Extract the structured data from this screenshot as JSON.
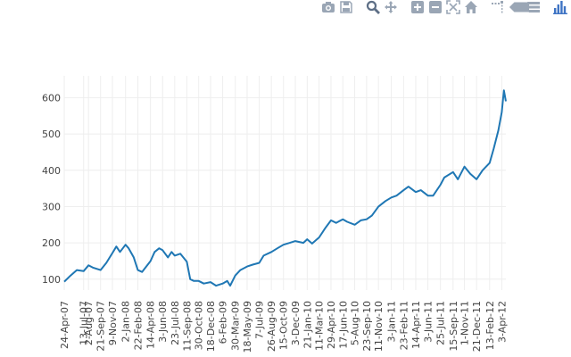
{
  "toolbar": {
    "buttons": [
      {
        "icon": "camera-icon"
      },
      {
        "icon": "save-icon"
      },
      {
        "icon": "zoom-icon",
        "active": true
      },
      {
        "icon": "pan-icon"
      },
      {
        "icon": "zoom-in-icon"
      },
      {
        "icon": "zoom-out-icon"
      },
      {
        "icon": "autoscale-icon"
      },
      {
        "icon": "home-icon"
      },
      {
        "icon": "spike-lines-icon"
      },
      {
        "icon": "hover-closest-icon"
      },
      {
        "icon": "hover-compare-icon"
      },
      {
        "icon": "plotly-logo-icon"
      }
    ]
  },
  "colors": {
    "line": "#1f77b4",
    "grid": "#eeeeee",
    "icon": "#9aa6b5",
    "icon_active": "#5e6f86",
    "logo": "#3f74c4"
  },
  "chart_data": {
    "type": "line",
    "title": "",
    "xlabel": "",
    "ylabel": "",
    "grid": true,
    "legend": "none",
    "xlim": [
      "2007-04-24",
      "2012-04-20"
    ],
    "ylim": [
      70,
      660
    ],
    "yticks": [
      100,
      200,
      300,
      400,
      500,
      600
    ],
    "xticks": [
      "24-Apr-07",
      "13-Jul-07",
      "2-Aug-07",
      "21-Sep-07",
      "9-Nov-07",
      "2-Jan-08",
      "22-Feb-08",
      "14-Apr-08",
      "3-Jun-08",
      "23-Jul-08",
      "11-Sep-08",
      "30-Oct-08",
      "18-Dec-08",
      "6-Feb-09",
      "30-Mar-09",
      "18-May-09",
      "7-Jul-09",
      "26-Aug-09",
      "15-Oct-09",
      "3-Dec-09",
      "21-Jan-10",
      "11-Mar-10",
      "29-Apr-10",
      "17-Jun-10",
      "5-Aug-10",
      "23-Sep-10",
      "11-Nov-10",
      "3-Jan-11",
      "23-Feb-11",
      "14-Apr-11",
      "3-Jun-11",
      "25-Jul-11",
      "15-Sep-11",
      "1-Nov-11",
      "21-Dec-11",
      "13-Feb-12",
      "3-Apr-12"
    ],
    "series": [
      {
        "color": "#1f77b4",
        "x": [
          "2007-04-24",
          "2007-05-20",
          "2007-06-15",
          "2007-07-13",
          "2007-08-02",
          "2007-08-20",
          "2007-09-21",
          "2007-10-15",
          "2007-11-09",
          "2007-11-25",
          "2007-12-10",
          "2008-01-02",
          "2008-01-15",
          "2008-02-05",
          "2008-02-22",
          "2008-03-10",
          "2008-04-14",
          "2008-05-01",
          "2008-05-20",
          "2008-06-03",
          "2008-06-25",
          "2008-07-10",
          "2008-07-23",
          "2008-08-15",
          "2008-09-11",
          "2008-09-25",
          "2008-10-10",
          "2008-10-30",
          "2008-11-20",
          "2008-12-18",
          "2009-01-10",
          "2009-02-06",
          "2009-02-25",
          "2009-03-09",
          "2009-03-30",
          "2009-04-20",
          "2009-05-18",
          "2009-06-10",
          "2009-07-07",
          "2009-07-25",
          "2009-08-26",
          "2009-09-20",
          "2009-10-15",
          "2009-11-10",
          "2009-12-03",
          "2010-01-05",
          "2010-01-21",
          "2010-02-10",
          "2010-03-11",
          "2010-04-05",
          "2010-04-29",
          "2010-05-20",
          "2010-06-17",
          "2010-07-05",
          "2010-08-05",
          "2010-08-30",
          "2010-09-23",
          "2010-10-15",
          "2010-11-11",
          "2010-12-10",
          "2011-01-03",
          "2011-01-25",
          "2011-02-23",
          "2011-03-15",
          "2011-04-14",
          "2011-05-05",
          "2011-06-03",
          "2011-06-25",
          "2011-07-25",
          "2011-08-10",
          "2011-09-15",
          "2011-10-05",
          "2011-11-01",
          "2011-11-25",
          "2011-12-21",
          "2012-01-15",
          "2012-02-13",
          "2012-03-01",
          "2012-03-20",
          "2012-04-03",
          "2012-04-12",
          "2012-04-20"
        ],
        "y": [
          93,
          110,
          125,
          122,
          138,
          132,
          125,
          145,
          172,
          190,
          175,
          195,
          185,
          160,
          125,
          120,
          150,
          175,
          185,
          180,
          160,
          175,
          165,
          170,
          148,
          100,
          95,
          95,
          88,
          92,
          82,
          88,
          95,
          82,
          110,
          125,
          135,
          140,
          145,
          165,
          175,
          185,
          195,
          200,
          205,
          200,
          210,
          198,
          215,
          240,
          262,
          255,
          265,
          258,
          250,
          262,
          265,
          275,
          300,
          315,
          325,
          330,
          345,
          355,
          340,
          345,
          330,
          330,
          360,
          380,
          395,
          375,
          410,
          390,
          375,
          400,
          420,
          460,
          510,
          560,
          620,
          590
        ]
      }
    ]
  }
}
